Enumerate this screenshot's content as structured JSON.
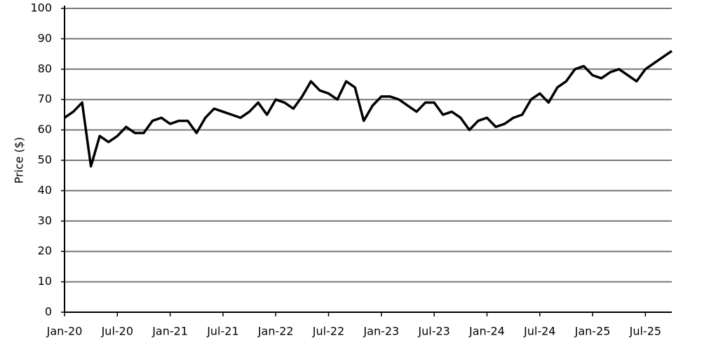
{
  "chart_data": {
    "type": "line",
    "y_label": "Price ($)",
    "categories": [
      "Jan-20",
      null,
      null,
      null,
      null,
      null,
      "Jul-20",
      null,
      null,
      null,
      null,
      null,
      "Jan-21",
      null,
      null,
      null,
      null,
      null,
      "Jul-21",
      null,
      null,
      null,
      null,
      null,
      "Jan-22",
      null,
      null,
      null,
      null,
      null,
      "Jul-22",
      null,
      null,
      null,
      null,
      null,
      "Jan-23",
      null,
      null,
      null,
      null,
      null,
      "Jul-23",
      null,
      null,
      null,
      null,
      null,
      "Jan-24",
      null,
      null,
      null,
      null,
      null,
      "Jul-24",
      null,
      null,
      null,
      null,
      null,
      "Jan-25",
      null,
      null,
      null,
      null,
      null,
      "Jul-25",
      null,
      null,
      null
    ],
    "series": [
      {
        "color": "#000000",
        "values": [
          64,
          66,
          69,
          48,
          58,
          56,
          58,
          61,
          59,
          59,
          63,
          64,
          62,
          63,
          63,
          59,
          64,
          67,
          66,
          65,
          64,
          66,
          69,
          65,
          70,
          69,
          67,
          71,
          76,
          73,
          72,
          70,
          76,
          74,
          63,
          68,
          71,
          71,
          70,
          68,
          66,
          69,
          69,
          65,
          66,
          64,
          60,
          63,
          64,
          61,
          62,
          64,
          65,
          70,
          72,
          69,
          74,
          76,
          80,
          81,
          78,
          77,
          79,
          80,
          78,
          76,
          80,
          82,
          84,
          86
        ]
      }
    ],
    "ylim": [
      0,
      100
    ],
    "yticks": [
      0,
      10,
      20,
      30,
      40,
      50,
      60,
      70,
      80,
      90,
      100
    ],
    "grid": true
  }
}
